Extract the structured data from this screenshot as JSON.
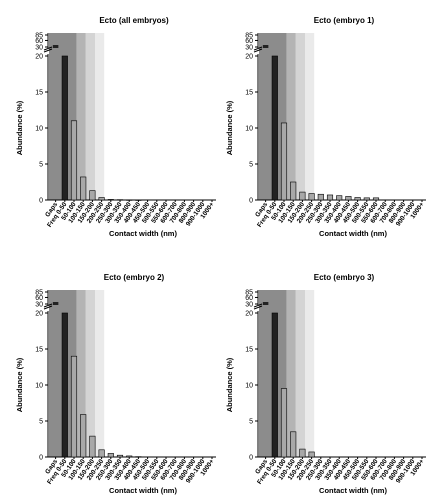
{
  "colors": {
    "axis": "#000000",
    "bar_fill": "#a8a8a8",
    "bar_stroke": "#000000",
    "zone_dark": "#8c8c8c",
    "zone_mid": "#b4b4b4",
    "zone_light": "#d4d4d4",
    "zone_lighter": "#eaeaea"
  },
  "chart_data": [
    {
      "type": "bar",
      "title": "Ecto (all embryos)",
      "xlabel": "Contact width (nm)",
      "ylabel": "Abundance (%)",
      "categories": [
        "Gaps",
        "Freq 0-50",
        "50-100",
        "100-150",
        "150-200",
        "200-250",
        "250-300",
        "300-350",
        "350-400",
        "400-450",
        "450-500",
        "500-550",
        "550-600",
        "600-700",
        "700-800",
        "800-900",
        "900-1000",
        "1000+"
      ],
      "values": [
        85,
        20,
        11,
        3.2,
        1.3,
        0.35,
        0.08,
        0.05,
        0.03,
        0.02,
        0,
        0,
        0,
        0,
        0,
        0,
        0,
        0
      ],
      "yticks_lower": [
        0,
        5,
        10,
        15,
        20
      ],
      "yticks_upper": [
        30,
        60,
        85
      ],
      "ylim_lower": [
        0,
        20
      ],
      "ylim_upper": [
        30,
        85
      ],
      "grid": false
    },
    {
      "type": "bar",
      "title": "Ecto (embryo 1)",
      "xlabel": "Contact width (nm)",
      "ylabel": "Abundance (%)",
      "categories": [
        "Gaps",
        "Freq 0-50",
        "50-100",
        "100-150",
        "150-200",
        "200-250",
        "250-300",
        "300-350",
        "350-400",
        "400-450",
        "450-500",
        "500-550",
        "550-600",
        "600-700",
        "700-800",
        "800-900",
        "900-1000",
        "1000+"
      ],
      "values": [
        85,
        20,
        10.7,
        2.5,
        1.1,
        0.9,
        0.8,
        0.7,
        0.6,
        0.5,
        0.35,
        0.3,
        0.3,
        0,
        0,
        0,
        0,
        0
      ],
      "yticks_lower": [
        0,
        5,
        10,
        15,
        20
      ],
      "yticks_upper": [
        30,
        60,
        85
      ],
      "ylim_lower": [
        0,
        20
      ],
      "ylim_upper": [
        30,
        85
      ],
      "grid": false
    },
    {
      "type": "bar",
      "title": "Ecto (embryo 2)",
      "xlabel": "Contact width (nm)",
      "ylabel": "Abundance (%)",
      "categories": [
        "Gaps",
        "Freq 0-50",
        "50-100",
        "100-150",
        "150-200",
        "200-250",
        "250-300",
        "300-350",
        "350-400",
        "400-450",
        "450-500",
        "500-550",
        "550-600",
        "600-700",
        "700-800",
        "800-900",
        "900-1000",
        "1000+"
      ],
      "values": [
        85,
        20,
        14,
        5.9,
        2.9,
        1,
        0.5,
        0.25,
        0.15,
        0.05,
        0,
        0,
        0,
        0,
        0,
        0,
        0,
        0
      ],
      "yticks_lower": [
        0,
        5,
        10,
        15,
        20
      ],
      "yticks_upper": [
        30,
        60,
        85
      ],
      "ylim_lower": [
        0,
        20
      ],
      "ylim_upper": [
        30,
        85
      ],
      "grid": false
    },
    {
      "type": "bar",
      "title": "Ecto (embryo 3)",
      "xlabel": "Contact width (nm)",
      "ylabel": "Abundance (%)",
      "categories": [
        "Gaps",
        "Freq 0-50",
        "50-100",
        "100-150",
        "150-200",
        "200-250",
        "250-300",
        "300-350",
        "350-400",
        "400-450",
        "450-500",
        "500-550",
        "550-600",
        "600-700",
        "700-800",
        "800-900",
        "900-1000",
        "1000+"
      ],
      "values": [
        85,
        20,
        9.5,
        3.5,
        1.1,
        0.7,
        0,
        0,
        0,
        0,
        0,
        0,
        0,
        0,
        0,
        0,
        0,
        0
      ],
      "yticks_lower": [
        0,
        5,
        10,
        15,
        20
      ],
      "yticks_upper": [
        30,
        60,
        85
      ],
      "ylim_lower": [
        0,
        20
      ],
      "ylim_upper": [
        30,
        85
      ],
      "grid": false
    }
  ]
}
